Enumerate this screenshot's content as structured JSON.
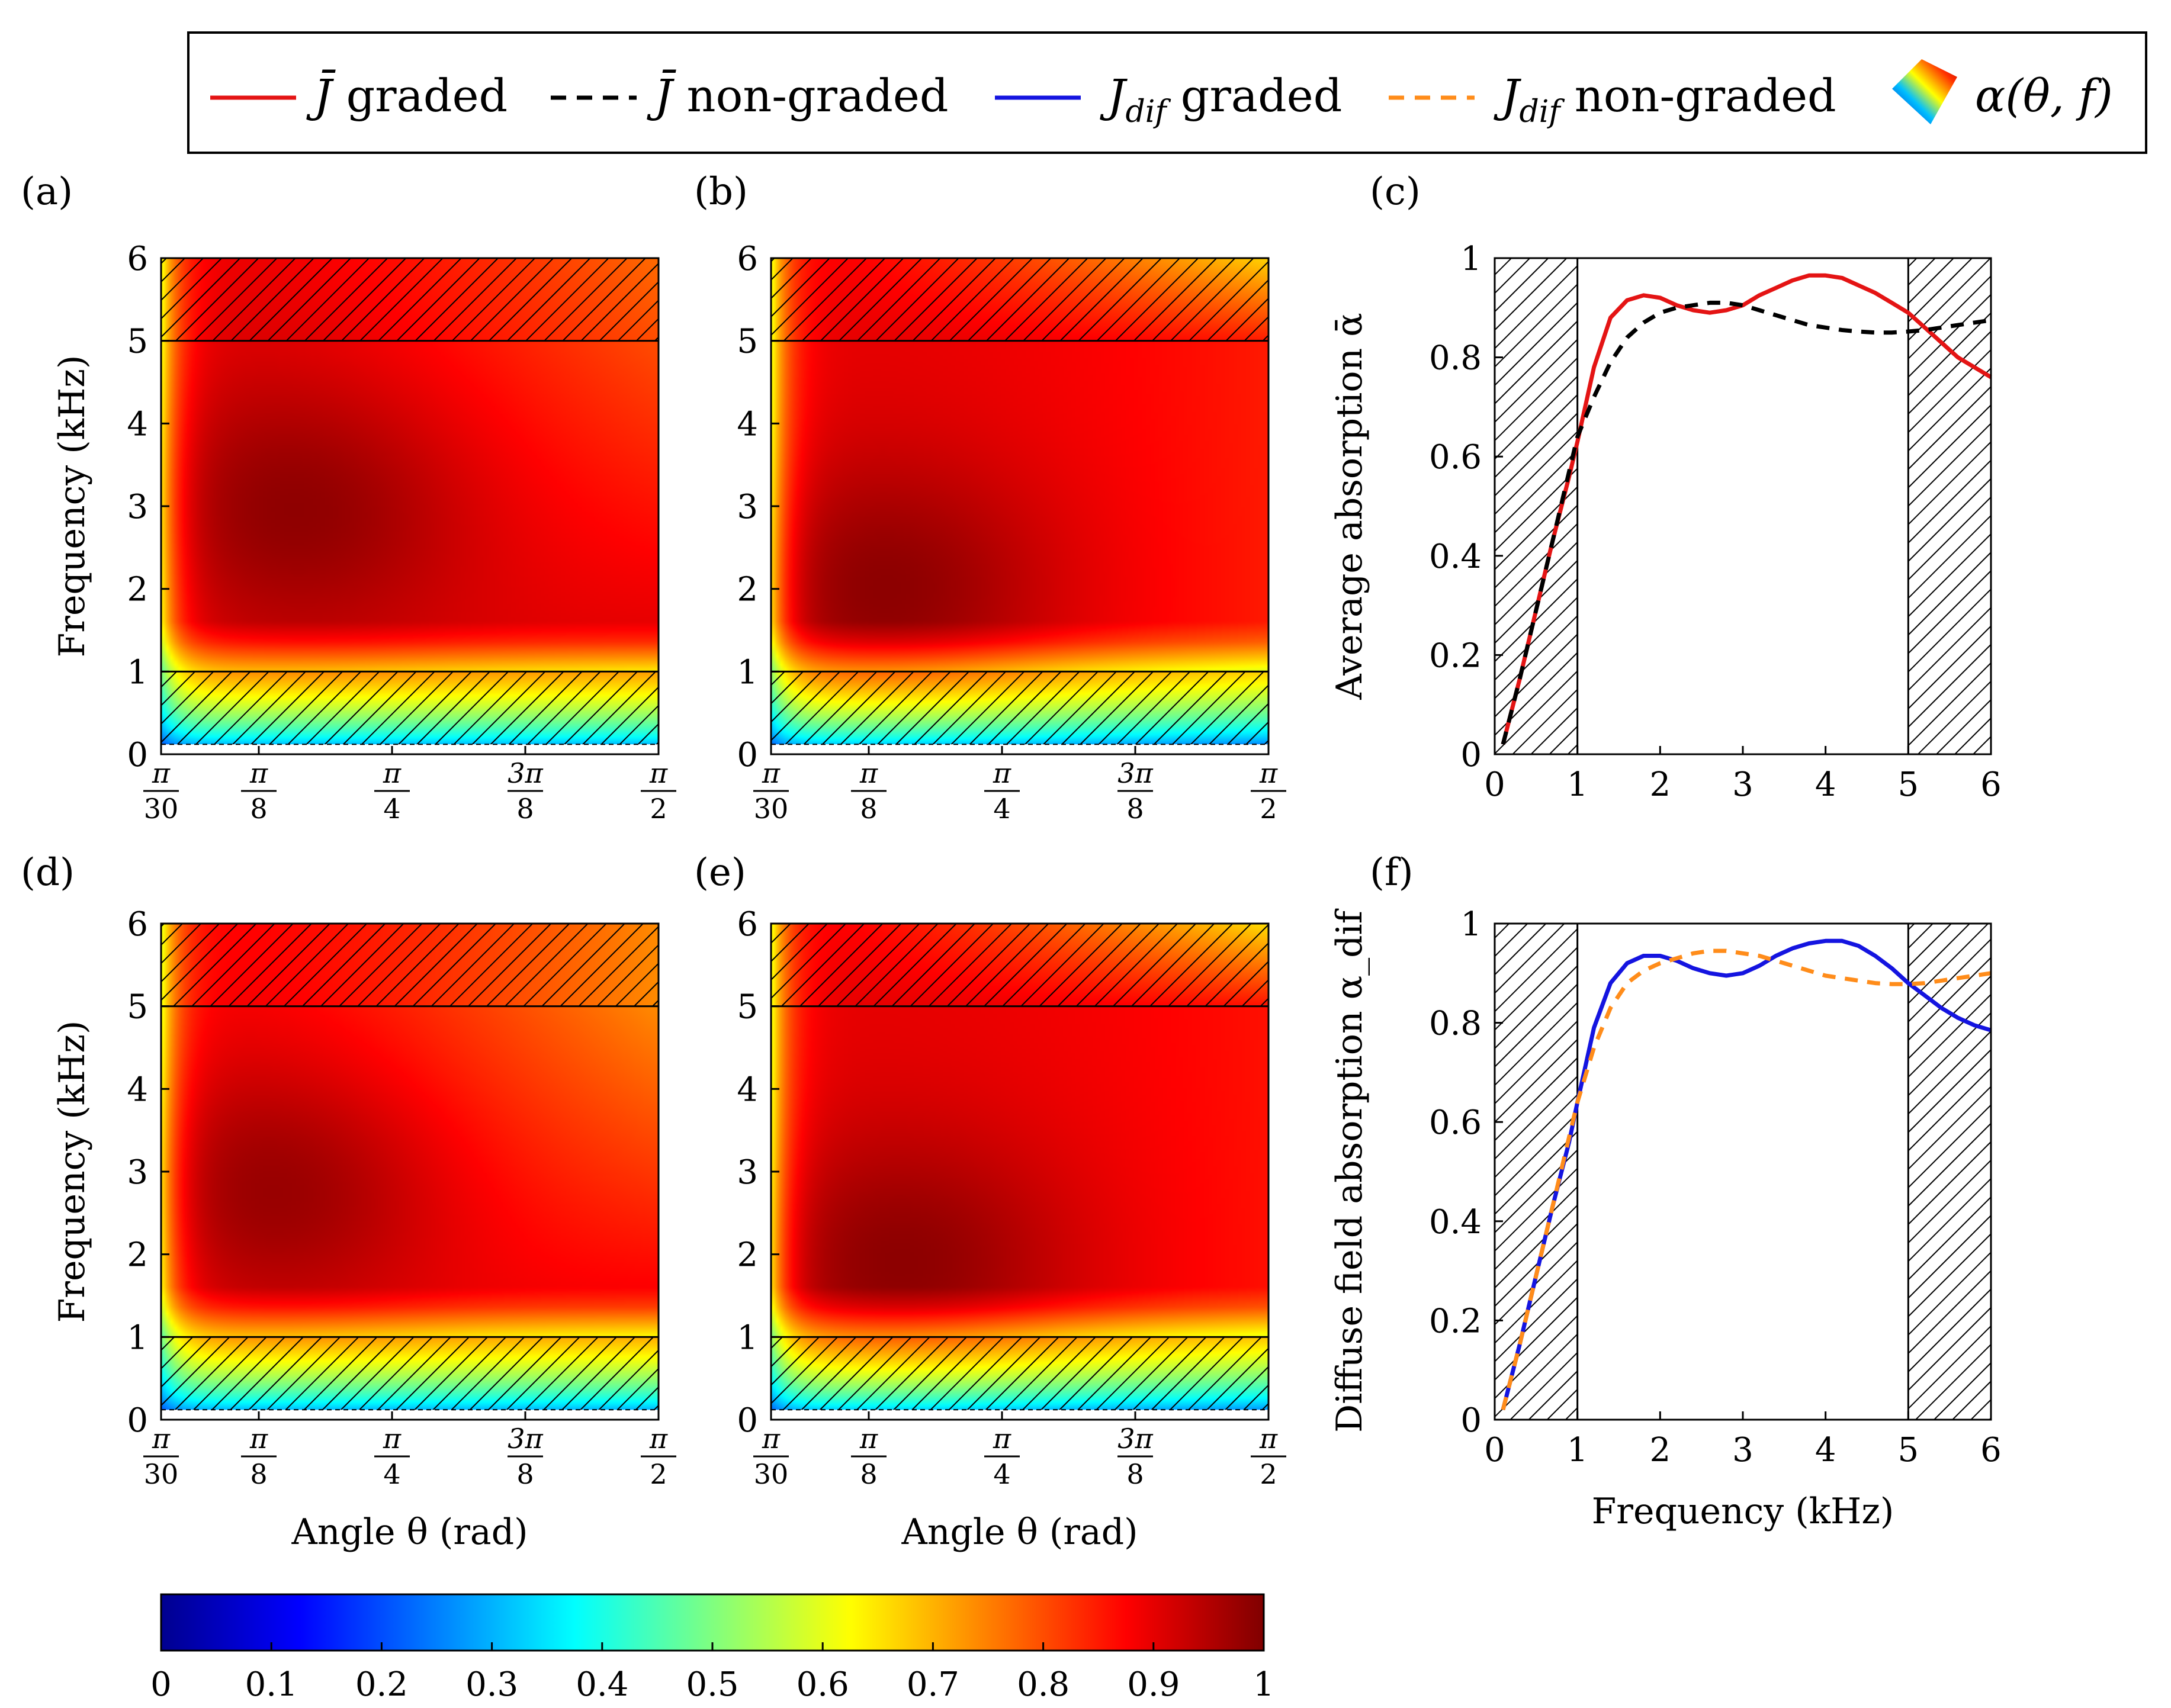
{
  "legend": {
    "items": [
      {
        "key": "j-graded",
        "label_main": "J̄",
        "label_sub": "",
        "label_rest": " graded",
        "color": "#e41414",
        "dash": "solid"
      },
      {
        "key": "j-nongraded",
        "label_main": "J̄",
        "label_sub": "",
        "label_rest": " non-graded",
        "color": "#000000",
        "dash": "dashed"
      },
      {
        "key": "jdif-graded",
        "label_main": "J",
        "label_sub": "dif",
        "label_rest": " graded",
        "color": "#1414e0",
        "dash": "solid"
      },
      {
        "key": "jdif-nongraded",
        "label_main": "J",
        "label_sub": "dif",
        "label_rest": " non-graded",
        "color": "#ff8c1a",
        "dash": "dashed"
      },
      {
        "key": "alpha-surface",
        "label_main": "α(θ, f)",
        "label_sub": "",
        "label_rest": "",
        "color": "jet",
        "dash": "surface"
      }
    ]
  },
  "colorbar": {
    "ticks": [
      "0",
      "0.1",
      "0.2",
      "0.3",
      "0.4",
      "0.5",
      "0.6",
      "0.7",
      "0.8",
      "0.9",
      "1"
    ],
    "range": [
      0,
      1
    ],
    "colormap": "jet"
  },
  "chart_data": [
    {
      "panel": "a",
      "label": "(a)",
      "type": "heatmap",
      "xlabel": "",
      "ylabel": "Frequency (kHz)",
      "xticks": [
        "π/30",
        "π/8",
        "π/4",
        "3π/8",
        "π/2"
      ],
      "xtick_values": [
        0.1047,
        0.3927,
        0.7854,
        1.1781,
        1.5708
      ],
      "yticks": [
        "0",
        "1",
        "2",
        "3",
        "4",
        "5",
        "6"
      ],
      "xlim": [
        0.1047,
        1.5708
      ],
      "ylim": [
        0,
        6
      ],
      "hatched_bands": [
        [
          0,
          1
        ],
        [
          5,
          6
        ]
      ],
      "value_range": [
        0,
        1
      ],
      "field": {
        "mid": 0.9,
        "dark_center": [
          0.52,
          3.0
        ],
        "dark_depth": 0.09,
        "right_drop_top": 0.1,
        "right_drop_bottom": 0.0,
        "high_freq": 0.9
      }
    },
    {
      "panel": "b",
      "label": "(b)",
      "type": "heatmap",
      "xlabel": "",
      "ylabel": "",
      "xticks": [
        "π/30",
        "π/8",
        "π/4",
        "3π/8",
        "π/2"
      ],
      "xtick_values": [
        0.1047,
        0.3927,
        0.7854,
        1.1781,
        1.5708
      ],
      "yticks": [
        "0",
        "1",
        "2",
        "3",
        "4",
        "5",
        "6"
      ],
      "xlim": [
        0.1047,
        1.5708
      ],
      "ylim": [
        0,
        6
      ],
      "hatched_bands": [
        [
          0,
          1
        ],
        [
          5,
          6
        ]
      ],
      "value_range": [
        0,
        1
      ],
      "field": {
        "mid": 0.9,
        "dark_center": [
          0.45,
          2.0
        ],
        "dark_depth": 0.09,
        "right_drop_top": 0.0,
        "right_drop_bottom": 0.05,
        "high_freq": 0.72
      }
    },
    {
      "panel": "c",
      "label": "(c)",
      "type": "line",
      "xlabel": "",
      "ylabel": "Average absorption ᾱ",
      "xticks": [
        "0",
        "1",
        "2",
        "3",
        "4",
        "5",
        "6"
      ],
      "yticks": [
        "0",
        "0.2",
        "0.4",
        "0.6",
        "0.8",
        "1"
      ],
      "xlim": [
        0,
        6
      ],
      "ylim": [
        0,
        1
      ],
      "hatched_bands": [
        [
          0,
          1
        ],
        [
          5,
          6
        ]
      ],
      "series": [
        {
          "name": "J̄ graded",
          "color": "#e41414",
          "dash": "solid",
          "x": [
            0.1,
            0.3,
            0.5,
            0.7,
            0.9,
            1.0,
            1.2,
            1.4,
            1.6,
            1.8,
            2.0,
            2.2,
            2.4,
            2.6,
            2.8,
            3.0,
            3.2,
            3.4,
            3.6,
            3.8,
            4.0,
            4.2,
            4.4,
            4.6,
            4.8,
            5.0,
            5.2,
            5.4,
            5.6,
            5.8,
            6.0
          ],
          "y": [
            0.02,
            0.15,
            0.29,
            0.43,
            0.56,
            0.63,
            0.78,
            0.88,
            0.915,
            0.925,
            0.92,
            0.905,
            0.895,
            0.89,
            0.895,
            0.905,
            0.925,
            0.94,
            0.955,
            0.965,
            0.965,
            0.96,
            0.945,
            0.93,
            0.91,
            0.89,
            0.86,
            0.83,
            0.8,
            0.78,
            0.76
          ]
        },
        {
          "name": "J̄ non-graded",
          "color": "#000000",
          "dash": "dashed",
          "x": [
            0.1,
            0.3,
            0.5,
            0.7,
            0.9,
            1.0,
            1.2,
            1.4,
            1.6,
            1.8,
            2.0,
            2.2,
            2.4,
            2.6,
            2.8,
            3.0,
            3.2,
            3.4,
            3.6,
            3.8,
            4.0,
            4.2,
            4.4,
            4.6,
            4.8,
            5.0,
            5.2,
            5.4,
            5.6,
            5.8,
            6.0
          ],
          "y": [
            0.02,
            0.15,
            0.29,
            0.43,
            0.57,
            0.64,
            0.72,
            0.79,
            0.84,
            0.87,
            0.89,
            0.9,
            0.905,
            0.91,
            0.91,
            0.905,
            0.895,
            0.885,
            0.875,
            0.865,
            0.86,
            0.855,
            0.852,
            0.85,
            0.85,
            0.852,
            0.855,
            0.86,
            0.865,
            0.87,
            0.875
          ]
        }
      ]
    },
    {
      "panel": "d",
      "label": "(d)",
      "type": "heatmap",
      "xlabel": "Angle θ (rad)",
      "ylabel": "Frequency (kHz)",
      "xticks": [
        "π/30",
        "π/8",
        "π/4",
        "3π/8",
        "π/2"
      ],
      "xtick_values": [
        0.1047,
        0.3927,
        0.7854,
        1.1781,
        1.5708
      ],
      "yticks": [
        "0",
        "1",
        "2",
        "3",
        "4",
        "5",
        "6"
      ],
      "xlim": [
        0.1047,
        1.5708
      ],
      "ylim": [
        0,
        6
      ],
      "hatched_bands": [
        [
          0,
          1
        ],
        [
          5,
          6
        ]
      ],
      "value_range": [
        0,
        1
      ],
      "field": {
        "mid": 0.88,
        "dark_center": [
          0.45,
          2.8
        ],
        "dark_depth": 0.1,
        "right_drop_top": 0.14,
        "right_drop_bottom": 0.0,
        "high_freq": 0.92
      }
    },
    {
      "panel": "e",
      "label": "(e)",
      "type": "heatmap",
      "xlabel": "Angle θ (rad)",
      "ylabel": "",
      "xticks": [
        "π/30",
        "π/8",
        "π/4",
        "3π/8",
        "π/2"
      ],
      "xtick_values": [
        0.1047,
        0.3927,
        0.7854,
        1.1781,
        1.5708
      ],
      "yticks": [
        "0",
        "1",
        "2",
        "3",
        "4",
        "5",
        "6"
      ],
      "xlim": [
        0.1047,
        1.5708
      ],
      "ylim": [
        0,
        6
      ],
      "hatched_bands": [
        [
          0,
          1
        ],
        [
          5,
          6
        ]
      ],
      "value_range": [
        0,
        1
      ],
      "field": {
        "mid": 0.9,
        "dark_center": [
          0.5,
          1.9
        ],
        "dark_depth": 0.09,
        "right_drop_top": 0.0,
        "right_drop_bottom": 0.04,
        "high_freq": 0.7
      }
    },
    {
      "panel": "f",
      "label": "(f)",
      "type": "line",
      "xlabel": "Frequency (kHz)",
      "ylabel": "Diffuse field absorption α_dif",
      "xticks": [
        "0",
        "1",
        "2",
        "3",
        "4",
        "5",
        "6"
      ],
      "yticks": [
        "0",
        "0.2",
        "0.4",
        "0.6",
        "0.8",
        "1"
      ],
      "xlim": [
        0,
        6
      ],
      "ylim": [
        0,
        1
      ],
      "hatched_bands": [
        [
          0,
          1
        ],
        [
          5,
          6
        ]
      ],
      "series": [
        {
          "name": "J_dif graded",
          "color": "#1414e0",
          "dash": "solid",
          "x": [
            0.1,
            0.3,
            0.5,
            0.7,
            0.9,
            1.0,
            1.2,
            1.4,
            1.6,
            1.8,
            2.0,
            2.2,
            2.4,
            2.6,
            2.8,
            3.0,
            3.2,
            3.4,
            3.6,
            3.8,
            4.0,
            4.2,
            4.4,
            4.6,
            4.8,
            5.0,
            5.2,
            5.4,
            5.6,
            5.8,
            6.0
          ],
          "y": [
            0.02,
            0.15,
            0.29,
            0.43,
            0.56,
            0.64,
            0.79,
            0.88,
            0.92,
            0.935,
            0.935,
            0.925,
            0.91,
            0.9,
            0.895,
            0.9,
            0.915,
            0.935,
            0.95,
            0.96,
            0.965,
            0.965,
            0.955,
            0.935,
            0.91,
            0.88,
            0.855,
            0.83,
            0.81,
            0.795,
            0.785
          ]
        },
        {
          "name": "J_dif non-graded",
          "color": "#ff8c1a",
          "dash": "dashed",
          "x": [
            0.1,
            0.3,
            0.5,
            0.7,
            0.9,
            1.0,
            1.2,
            1.4,
            1.6,
            1.8,
            2.0,
            2.2,
            2.4,
            2.6,
            2.8,
            3.0,
            3.2,
            3.4,
            3.6,
            3.8,
            4.0,
            4.2,
            4.4,
            4.6,
            4.8,
            5.0,
            5.2,
            5.4,
            5.6,
            5.8,
            6.0
          ],
          "y": [
            0.02,
            0.15,
            0.29,
            0.43,
            0.57,
            0.64,
            0.75,
            0.83,
            0.88,
            0.905,
            0.92,
            0.93,
            0.94,
            0.945,
            0.945,
            0.94,
            0.935,
            0.925,
            0.915,
            0.905,
            0.895,
            0.89,
            0.885,
            0.88,
            0.878,
            0.878,
            0.88,
            0.885,
            0.89,
            0.895,
            0.9
          ]
        }
      ]
    }
  ]
}
